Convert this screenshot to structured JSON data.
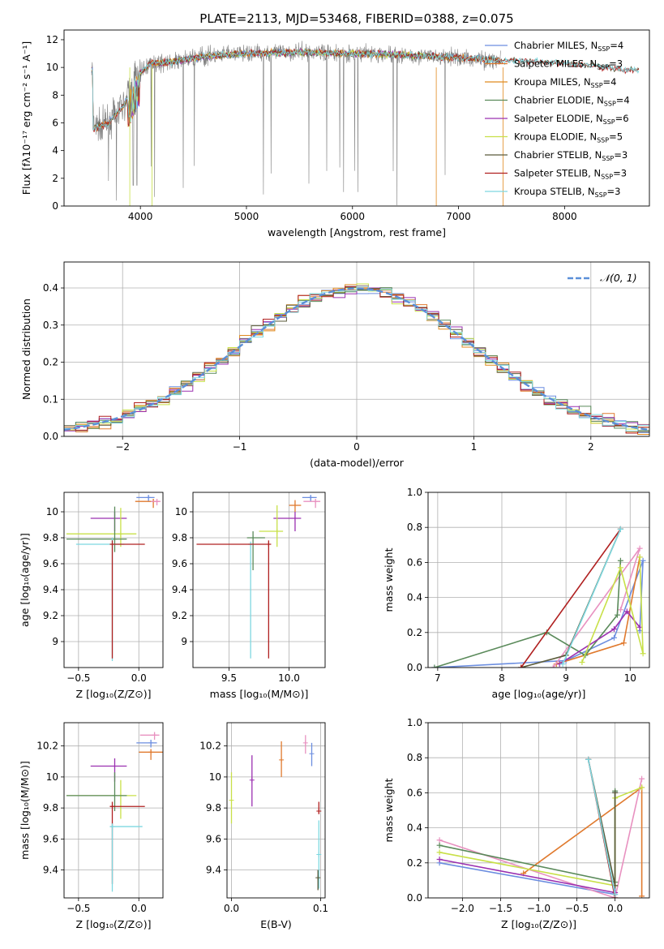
{
  "chart_data": [
    {
      "id": "spectrum",
      "type": "line",
      "title": "PLATE=2113, MJD=53468, FIBERID=0388, z=0.075",
      "xlabel": "wavelength [Angstrom, rest frame]",
      "ylabel": "Flux [fλ10⁻¹⁷ erg cm⁻² s⁻¹ A⁻¹]",
      "xlim": [
        3280,
        8800
      ],
      "ylim": [
        0,
        12.7
      ],
      "xticks": [
        4000,
        5000,
        6000,
        7000,
        8000
      ],
      "yticks": [
        0,
        2,
        4,
        6,
        8,
        10,
        12
      ],
      "grid": false,
      "legend_position": "right",
      "data_color": "#7f7f7f",
      "data_range": [
        3540,
        7400
      ],
      "continuum": [
        [
          3550,
          5.6
        ],
        [
          3700,
          6.0
        ],
        [
          3850,
          7.3
        ],
        [
          3950,
          9.3
        ],
        [
          4100,
          10.3
        ],
        [
          4300,
          10.4
        ],
        [
          4600,
          10.8
        ],
        [
          5000,
          11.0
        ],
        [
          5500,
          11.1
        ],
        [
          6000,
          11.0
        ],
        [
          6500,
          10.9
        ],
        [
          7000,
          10.7
        ],
        [
          7400,
          10.5
        ],
        [
          7800,
          10.4
        ],
        [
          8200,
          10.2
        ],
        [
          8600,
          9.8
        ]
      ],
      "series": [
        {
          "name": "Chabrier MILES, N",
          "sub": "SSP",
          "suffix": "=4",
          "color": "#6c8ee0",
          "range": [
            3540,
            7400
          ]
        },
        {
          "name": "Salpeter MILES, N",
          "sub": "SSP",
          "suffix": "=3",
          "color": "#e07a2e",
          "range": [
            3540,
            7400
          ]
        },
        {
          "name": "Kroupa MILES, N",
          "sub": "SSP",
          "suffix": "=4",
          "color": "#e08a1e",
          "range": [
            3540,
            7400
          ]
        },
        {
          "name": "Chabrier ELODIE, N",
          "sub": "SSP",
          "suffix": "=4",
          "color": "#5a8a5a",
          "range": [
            3900,
            6800
          ]
        },
        {
          "name": "Salpeter ELODIE, N",
          "sub": "SSP",
          "suffix": "=6",
          "color": "#9b30b0",
          "range": [
            3900,
            6800
          ]
        },
        {
          "name": "Kroupa ELODIE, N",
          "sub": "SSP",
          "suffix": "=5",
          "color": "#c8e048",
          "range": [
            3900,
            6800
          ]
        },
        {
          "name": "Chabrier STELIB, N",
          "sub": "SSP",
          "suffix": "=3",
          "color": "#5a5a3a",
          "range": [
            3540,
            8700
          ]
        },
        {
          "name": "Salpeter STELIB, N",
          "sub": "SSP",
          "suffix": "=3",
          "color": "#b02020",
          "range": [
            3540,
            8700
          ]
        },
        {
          "name": "Kroupa STELIB, N",
          "sub": "SSP",
          "suffix": "=3",
          "color": "#7ed8e0",
          "range": [
            3540,
            8700
          ]
        }
      ]
    },
    {
      "id": "residuals",
      "type": "histogram",
      "xlabel": "(data-model)/error",
      "ylabel": "Normed distribution",
      "xlim": [
        -2.5,
        2.5
      ],
      "ylim": [
        0,
        0.47
      ],
      "xticks": [
        -2,
        -1,
        0,
        1,
        2
      ],
      "xtick_labels": [
        "−2",
        "−1",
        "0",
        "1",
        "2"
      ],
      "yticks": [
        0.0,
        0.1,
        0.2,
        0.3,
        0.4
      ],
      "ytick_labels": [
        "0.0",
        "0.1",
        "0.2",
        "0.3",
        "0.4"
      ],
      "grid": true,
      "bin_width": 0.1,
      "gaussian": {
        "label": "𝒩(0, 1)",
        "mean": 0,
        "sigma": 1,
        "color": "#5b8fd8"
      },
      "legend_position": "top-right",
      "colors": [
        "#6c8ee0",
        "#e07a2e",
        "#e08a1e",
        "#5a8a5a",
        "#9b30b0",
        "#c8e048",
        "#5a5a3a",
        "#b02020",
        "#7ed8e0"
      ]
    },
    {
      "id": "age-vs-Z",
      "type": "errorbar",
      "xlabel": "Z [log₁₀(Z/Z⊙)]",
      "ylabel": "age  [log₁₀(age/yr)]",
      "xlim": [
        -0.62,
        0.2
      ],
      "ylim": [
        8.8,
        10.15
      ],
      "xticks": [
        -0.5,
        0.0
      ],
      "xtick_labels": [
        "−0.5",
        "0.0"
      ],
      "yticks": [
        9.0,
        9.2,
        9.4,
        9.6,
        9.8,
        10.0
      ],
      "points": [
        {
          "x": 0.08,
          "xerr": [
            0.1,
            0.05
          ],
          "y": 10.11,
          "yerr": [
            0.03,
            0.02
          ],
          "color": "#6c8ee0"
        },
        {
          "x": 0.12,
          "xerr": [
            0.15,
            0.05
          ],
          "y": 10.08,
          "yerr": [
            0.05,
            0.02
          ],
          "color": "#e07a2e"
        },
        {
          "x": 0.15,
          "xerr": [
            0.05,
            0.03
          ],
          "y": 10.08,
          "yerr": [
            0.03,
            0.02
          ],
          "color": "#e891c0"
        },
        {
          "x": -0.2,
          "xerr": [
            0.2,
            0.1
          ],
          "y": 9.95,
          "yerr": [
            0.1,
            0.05
          ],
          "color": "#9b30b0"
        },
        {
          "x": -0.15,
          "xerr": [
            0.45,
            0.13
          ],
          "y": 9.83,
          "yerr": [
            0.1,
            0.2
          ],
          "color": "#c8e048"
        },
        {
          "x": -0.2,
          "xerr": [
            0.4,
            0.1
          ],
          "y": 9.79,
          "yerr": [
            0.1,
            0.25
          ],
          "color": "#5a8a5a"
        },
        {
          "x": -0.22,
          "xerr": [
            0.3,
            0.1
          ],
          "y": 9.75,
          "yerr": [
            0.9,
            0.05
          ],
          "color": "#7ed8e0"
        },
        {
          "x": -0.22,
          "xerr": [
            0.02,
            0.27
          ],
          "y": 9.75,
          "yerr": [
            0.88,
            0.03
          ],
          "color": "#b02020"
        }
      ]
    },
    {
      "id": "age-vs-mass",
      "type": "errorbar",
      "xlabel": "mass [log₁₀(M/M⊙)]",
      "ylabel": "",
      "xlim": [
        9.2,
        10.3
      ],
      "ylim": [
        8.8,
        10.15
      ],
      "xticks": [
        9.5,
        10.0
      ],
      "xtick_labels": [
        "9.5",
        "10.0"
      ],
      "yticks": [
        9.0,
        9.2,
        9.4,
        9.6,
        9.8,
        10.0
      ],
      "points": [
        {
          "x": 10.18,
          "xerr": [
            0.07,
            0.05
          ],
          "y": 10.11,
          "yerr": [
            0.03,
            0.02
          ],
          "color": "#6c8ee0"
        },
        {
          "x": 10.22,
          "xerr": [
            0.1,
            0.04
          ],
          "y": 10.08,
          "yerr": [
            0.05,
            0.02
          ],
          "color": "#e891c0"
        },
        {
          "x": 10.05,
          "xerr": [
            0.05,
            0.05
          ],
          "y": 10.05,
          "yerr": [
            0.05,
            0.04
          ],
          "color": "#e07a2e"
        },
        {
          "x": 10.05,
          "xerr": [
            0.18,
            0.05
          ],
          "y": 9.95,
          "yerr": [
            0.1,
            0.05
          ],
          "color": "#9b30b0"
        },
        {
          "x": 9.9,
          "xerr": [
            0.15,
            0.05
          ],
          "y": 9.85,
          "yerr": [
            0.12,
            0.2
          ],
          "color": "#c8e048"
        },
        {
          "x": 9.7,
          "xerr": [
            0.05,
            0.1
          ],
          "y": 9.8,
          "yerr": [
            0.25,
            0.05
          ],
          "color": "#5a8a5a"
        },
        {
          "x": 9.68,
          "xerr": [
            0.02,
            0.02
          ],
          "y": 9.75,
          "yerr": [
            0.88,
            0.02
          ],
          "color": "#7ed8e0"
        },
        {
          "x": 9.83,
          "xerr": [
            0.6,
            0.02
          ],
          "y": 9.75,
          "yerr": [
            0.88,
            0.03
          ],
          "color": "#b02020"
        }
      ]
    },
    {
      "id": "weight-vs-age",
      "type": "line",
      "xlabel": "age  [log₁₀(age/yr)]",
      "ylabel": "mass weight",
      "xlim": [
        6.85,
        10.3
      ],
      "ylim": [
        0,
        1
      ],
      "xticks": [
        7,
        8,
        9,
        10
      ],
      "yticks": [
        0.0,
        0.2,
        0.4,
        0.6,
        0.8,
        1.0
      ],
      "series": [
        {
          "name": "",
          "color": "#6c8ee0",
          "x": [
            6.95,
            9.0,
            9.75,
            10.2,
            10.15
          ],
          "y": [
            0.0,
            0.04,
            0.17,
            0.61,
            0.21
          ]
        },
        {
          "name": "",
          "color": "#e07a2e",
          "x": [
            8.85,
            9.9,
            10.15
          ],
          "y": [
            0.02,
            0.14,
            0.63
          ]
        },
        {
          "name": "",
          "color": "#e891c0",
          "x": [
            8.8,
            10.15,
            9.85
          ],
          "y": [
            0.0,
            0.68,
            0.33
          ]
        },
        {
          "name": "",
          "color": "#5a8a5a",
          "x": [
            6.95,
            8.7,
            9.3,
            9.8,
            9.85
          ],
          "y": [
            0.0,
            0.2,
            0.07,
            0.3,
            0.61
          ]
        },
        {
          "name": "",
          "color": "#9b30b0",
          "x": [
            8.9,
            9.75,
            9.95,
            10.15
          ],
          "y": [
            0.02,
            0.22,
            0.32,
            0.23
          ]
        },
        {
          "name": "",
          "color": "#c8e048",
          "x": [
            9.25,
            9.85,
            10.2,
            10.15
          ],
          "y": [
            0.03,
            0.57,
            0.08,
            0.63
          ]
        },
        {
          "name": "",
          "color": "#5a5a3a",
          "x": [
            8.3,
            9.0,
            9.85
          ],
          "y": [
            0.0,
            0.07,
            0.79
          ]
        },
        {
          "name": "",
          "color": "#b02020",
          "x": [
            8.3,
            9.85
          ],
          "y": [
            0.0,
            0.79
          ]
        },
        {
          "name": "",
          "color": "#7ed8e0",
          "x": [
            8.95,
            9.85
          ],
          "y": [
            0.02,
            0.79
          ]
        }
      ]
    },
    {
      "id": "mass-vs-Z",
      "type": "errorbar",
      "xlabel": "Z [log₁₀(Z/Z⊙)]",
      "ylabel": "mass [log₁₀(M/M⊙)]",
      "xlim": [
        -0.62,
        0.2
      ],
      "ylim": [
        9.22,
        10.35
      ],
      "xticks": [
        -0.5,
        0.0
      ],
      "xtick_labels": [
        "−0.5",
        "0.0"
      ],
      "yticks": [
        9.4,
        9.6,
        9.8,
        10.0,
        10.2
      ],
      "points": [
        {
          "x": 0.13,
          "xerr": [
            0.12,
            0.04
          ],
          "y": 10.27,
          "yerr": [
            0.03,
            0.02
          ],
          "color": "#e891c0"
        },
        {
          "x": 0.1,
          "xerr": [
            0.12,
            0.05
          ],
          "y": 10.22,
          "yerr": [
            0.03,
            0.02
          ],
          "color": "#6c8ee0"
        },
        {
          "x": 0.1,
          "xerr": [
            0.1,
            0.1
          ],
          "y": 10.16,
          "yerr": [
            0.05,
            0.02
          ],
          "color": "#e07a2e"
        },
        {
          "x": -0.2,
          "xerr": [
            0.2,
            0.1
          ],
          "y": 10.07,
          "yerr": [
            0.1,
            0.05
          ],
          "color": "#9b30b0"
        },
        {
          "x": -0.15,
          "xerr": [
            0.45,
            0.13
          ],
          "y": 9.88,
          "yerr": [
            0.15,
            0.1
          ],
          "color": "#c8e048"
        },
        {
          "x": -0.2,
          "xerr": [
            0.4,
            0.1
          ],
          "y": 9.88,
          "yerr": [
            0.1,
            0.15
          ],
          "color": "#5a8a5a"
        },
        {
          "x": -0.22,
          "xerr": [
            0.02,
            0.27
          ],
          "y": 9.81,
          "yerr": [
            0.5,
            0.03
          ],
          "color": "#b02020"
        },
        {
          "x": -0.22,
          "xerr": [
            0.02,
            0.25
          ],
          "y": 9.68,
          "yerr": [
            0.42,
            0.02
          ],
          "color": "#7ed8e0"
        }
      ]
    },
    {
      "id": "mass-vs-EBV",
      "type": "errorbar",
      "xlabel": "E(B-V)",
      "ylabel": "",
      "xlim": [
        -0.005,
        0.105
      ],
      "ylim": [
        9.22,
        10.35
      ],
      "xticks": [
        0.0,
        0.1
      ],
      "xtick_labels": [
        "0.0",
        "0.1"
      ],
      "yticks": [
        9.4,
        9.6,
        9.8,
        10.0,
        10.2
      ],
      "points": [
        {
          "x": 0.083,
          "xerr": [
            0,
            0
          ],
          "y": 10.22,
          "yerr": [
            0.07,
            0.05
          ],
          "color": "#e891c0"
        },
        {
          "x": 0.09,
          "xerr": [
            0,
            0
          ],
          "y": 10.15,
          "yerr": [
            0.08,
            0.07
          ],
          "color": "#6c8ee0"
        },
        {
          "x": 0.056,
          "xerr": [
            0,
            0
          ],
          "y": 10.11,
          "yerr": [
            0.11,
            0.12
          ],
          "color": "#e07a2e"
        },
        {
          "x": 0.023,
          "xerr": [
            0,
            0
          ],
          "y": 9.98,
          "yerr": [
            0.17,
            0.16
          ],
          "color": "#9b30b0"
        },
        {
          "x": 0.0,
          "xerr": [
            0,
            0
          ],
          "y": 9.85,
          "yerr": [
            0.15,
            0.18
          ],
          "color": "#c8e048"
        },
        {
          "x": 0.098,
          "xerr": [
            0,
            0
          ],
          "y": 9.78,
          "yerr": [
            0.02,
            0.06
          ],
          "color": "#b02020"
        },
        {
          "x": 0.098,
          "xerr": [
            0,
            0
          ],
          "y": 9.5,
          "yerr": [
            0.22,
            0.22
          ],
          "color": "#7ed8e0"
        },
        {
          "x": 0.097,
          "xerr": [
            0,
            0
          ],
          "y": 9.35,
          "yerr": [
            0.08,
            0.05
          ],
          "color": "#5a5a3a"
        }
      ]
    },
    {
      "id": "weight-vs-Z",
      "type": "line",
      "xlabel": "Z [log₁₀(Z/Z⊙)]",
      "ylabel": "mass weight",
      "xlim": [
        -2.45,
        0.45
      ],
      "ylim": [
        0,
        1
      ],
      "xticks": [
        -2.0,
        -1.5,
        -1.0,
        -0.5,
        0.0
      ],
      "xtick_labels": [
        "−2.0",
        "−1.5",
        "−1.0",
        "−0.5",
        "0.0"
      ],
      "yticks": [
        0.0,
        0.2,
        0.4,
        0.6,
        0.8,
        1.0
      ],
      "series": [
        {
          "name": "",
          "color": "#6c8ee0",
          "x": [
            -2.3,
            0.0,
            0.0
          ],
          "y": [
            0.2,
            0.02,
            0.6
          ]
        },
        {
          "name": "",
          "color": "#e07a2e",
          "x": [
            -1.2,
            0.35,
            0.35
          ],
          "y": [
            0.14,
            0.63,
            0.01
          ]
        },
        {
          "name": "",
          "color": "#e891c0",
          "x": [
            -2.3,
            0.0,
            0.35
          ],
          "y": [
            0.33,
            0.0,
            0.68
          ]
        },
        {
          "name": "",
          "color": "#5a8a5a",
          "x": [
            -2.3,
            0.0,
            0.0
          ],
          "y": [
            0.3,
            0.09,
            0.61
          ]
        },
        {
          "name": "",
          "color": "#9b30b0",
          "x": [
            -2.3,
            0.0
          ],
          "y": [
            0.22,
            0.03
          ]
        },
        {
          "name": "",
          "color": "#c8e048",
          "x": [
            -2.3,
            0.0,
            0.0,
            0.35
          ],
          "y": [
            0.26,
            0.07,
            0.57,
            0.63
          ]
        },
        {
          "name": "",
          "color": "#5a5a3a",
          "x": [
            -0.35,
            0.0,
            0.0
          ],
          "y": [
            0.79,
            0.07,
            0.6
          ]
        },
        {
          "name": "",
          "color": "#b02020",
          "x": [
            -0.35,
            0.0
          ],
          "y": [
            0.79,
            0.0
          ]
        },
        {
          "name": "",
          "color": "#7ed8e0",
          "x": [
            -0.35,
            0.0
          ],
          "y": [
            0.79,
            0.02
          ]
        }
      ]
    }
  ]
}
